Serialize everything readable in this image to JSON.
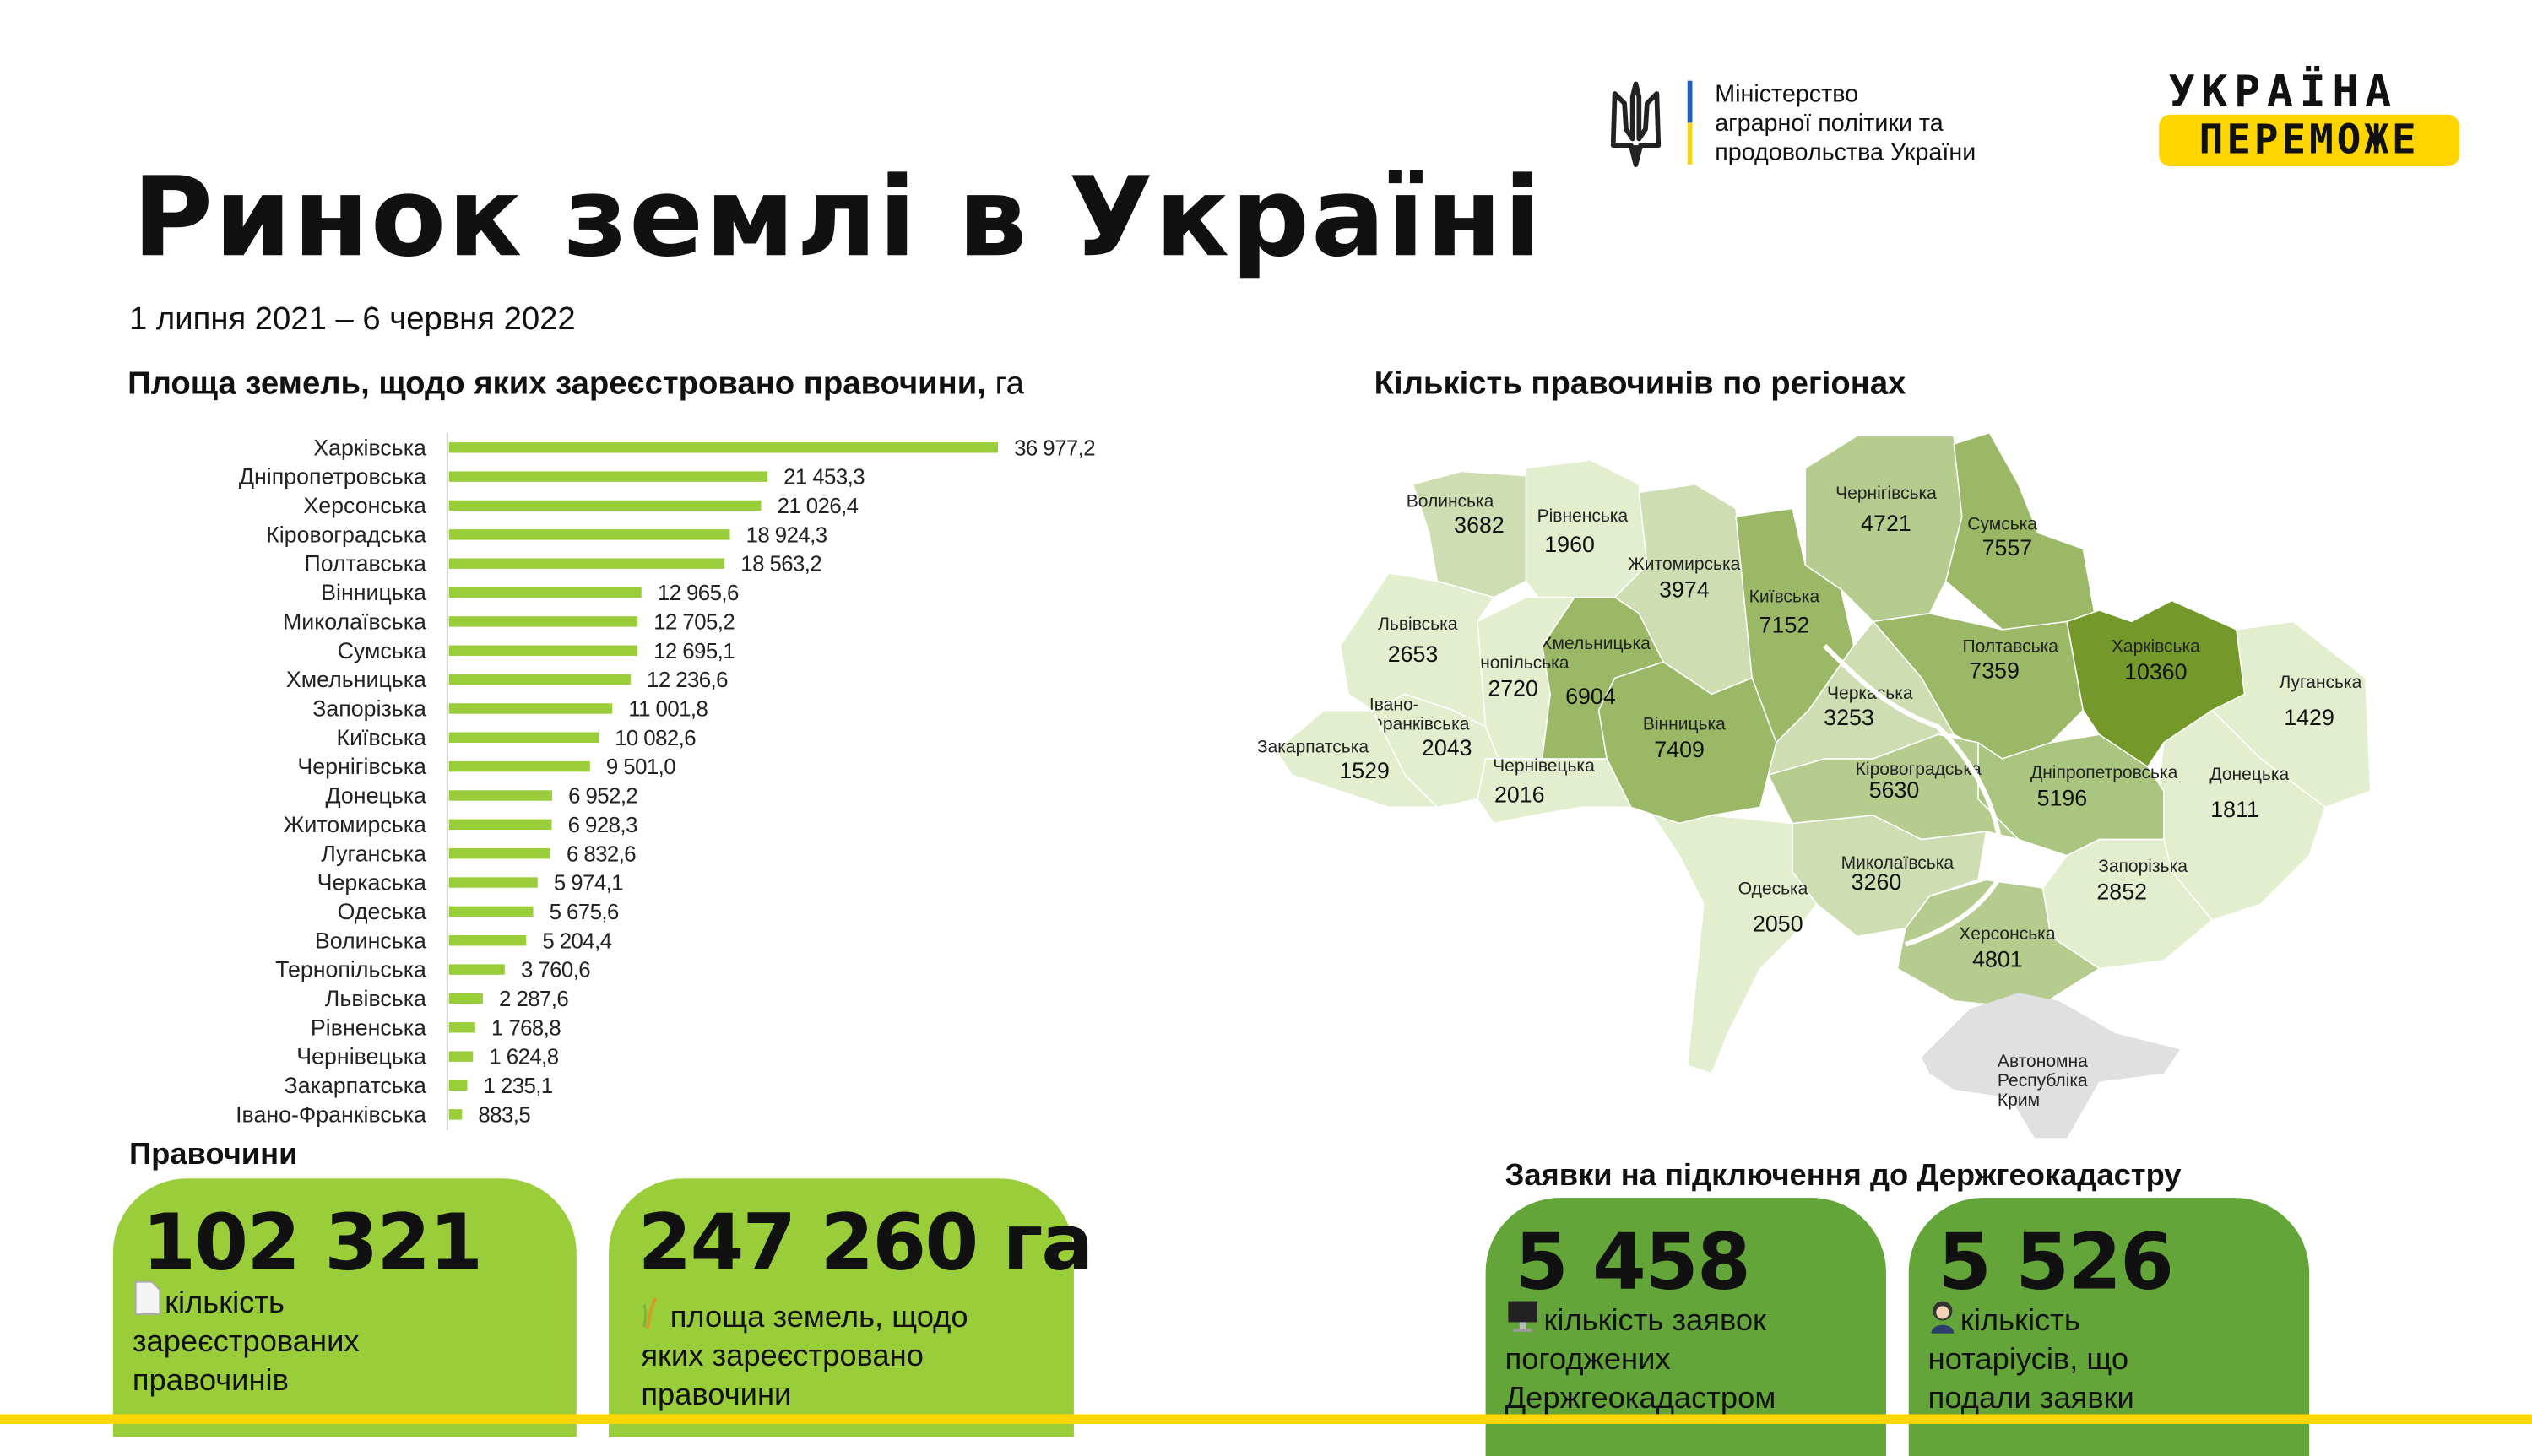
{
  "header": {
    "title": "Ринок землі в Україні",
    "period": "1 липня 2021 – 6 червня 2022",
    "ministry": [
      "Міністерство",
      "аграрної політики та",
      "продовольства України"
    ],
    "logo_line1": "УКРАЇНА",
    "logo_line2": "ПЕРЕМОЖЕ",
    "colors": {
      "yellow": "#ffd500",
      "blue": "#1a5fd0"
    }
  },
  "chart_data": {
    "type": "bar",
    "orientation": "horizontal",
    "title": "Площа земель, щодо яких зареєстровано правочини,",
    "unit": "га",
    "categories": [
      "Харківська",
      "Дніпропетровська",
      "Херсонська",
      "Кіровоградська",
      "Полтавська",
      "Вінницька",
      "Миколаївська",
      "Сумська",
      "Хмельницька",
      "Запорізька",
      "Київська",
      "Чернігівська",
      "Донецька",
      "Житомирська",
      "Луганська",
      "Черкаська",
      "Одеська",
      "Волинська",
      "Тернопільська",
      "Львівська",
      "Рівненська",
      "Чернівецька",
      "Закарпатська",
      "Івано-Франківська"
    ],
    "values": [
      36977.2,
      21453.3,
      21026.4,
      18924.3,
      18563.2,
      12965.6,
      12705.2,
      12695.1,
      12236.6,
      11001.8,
      10082.6,
      9501.0,
      6952.2,
      6928.3,
      6832.6,
      5974.1,
      5675.6,
      5204.4,
      3760.6,
      2287.6,
      1768.8,
      1624.8,
      1235.1,
      883.5
    ],
    "value_labels": [
      "36 977,2",
      "21 453,3",
      "21 026,4",
      "18 924,3",
      "18 563,2",
      "12 965,6",
      "12 705,2",
      "12 695,1",
      "12 236,6",
      "11 001,8",
      "10 082,6",
      "9 501,0",
      "6 952,2",
      "6 928,3",
      "6 832,6",
      "5 974,1",
      "5 675,6",
      "5 204,4",
      "3 760,6",
      "2 287,6",
      "1 768,8",
      "1 624,8",
      "1 235,1",
      "883,5"
    ],
    "bar_color": "#9acd3a",
    "xlim": [
      0,
      36977.2
    ],
    "grid": false
  },
  "map": {
    "title": "Кількість правочинів по регіонах",
    "regions": [
      {
        "name": "Волинська",
        "count": "3682"
      },
      {
        "name": "Рівненська",
        "count": "1960"
      },
      {
        "name": "Житомирська",
        "count": "3974"
      },
      {
        "name": "Київська",
        "count": "7152"
      },
      {
        "name": "Чернігівська",
        "count": "4721"
      },
      {
        "name": "Сумська",
        "count": "7557"
      },
      {
        "name": "Полтавська",
        "count": "7359"
      },
      {
        "name": "Харківська",
        "count": "10360"
      },
      {
        "name": "Луганська",
        "count": "1429"
      },
      {
        "name": "Донецька",
        "count": "1811"
      },
      {
        "name": "Дніпропетровська",
        "count": "5196"
      },
      {
        "name": "Запорізька",
        "count": "2852"
      },
      {
        "name": "Херсонська",
        "count": "4801"
      },
      {
        "name": "Миколаївська",
        "count": "3260"
      },
      {
        "name": "Одеська",
        "count": "2050"
      },
      {
        "name": "Кіровоградська",
        "count": "5630"
      },
      {
        "name": "Черкаська",
        "count": "3253"
      },
      {
        "name": "Вінницька",
        "count": "7409"
      },
      {
        "name": "Хмельницька",
        "count": "6904"
      },
      {
        "name": "Тернопільська",
        "count": "2720"
      },
      {
        "name": "Львівська",
        "count": "2653"
      },
      {
        "name": "Івано-Франківська",
        "name_lines": [
          "Івано-",
          "Франківська"
        ],
        "count": "2043"
      },
      {
        "name": "Закарпатська",
        "count": "1529"
      },
      {
        "name": "Чернівецька",
        "count": "2016"
      }
    ],
    "crimea": [
      "Автономна",
      "Республіка",
      "Крим"
    ],
    "colors": {
      "darkest": "#74992a",
      "dark": "#9bb866",
      "medium": "#b5cc8e",
      "light": "#cfdeb2",
      "lightest": "#e3eecf",
      "crimea": "#e0e0e0"
    }
  },
  "deals": {
    "heading": "Правочини",
    "cards": [
      {
        "value": "102 321",
        "icon": "document-icon",
        "desc": [
          "кількість",
          "зареєстрованих",
          "правочинів"
        ]
      },
      {
        "value": "247 260 га",
        "icon": "wheat-icon",
        "desc": [
          "площа земель, щодо",
          "яких зареєстровано",
          "правочини"
        ]
      }
    ],
    "color": "#9acd3a"
  },
  "applications": {
    "heading": "Заявки на підключення до Держгеокадастру",
    "cards": [
      {
        "value": "5 458",
        "icon": "computer-icon",
        "desc": [
          "кількість заявок",
          "погоджених",
          "Держгеокадастром"
        ]
      },
      {
        "value": "5 526",
        "icon": "notary-icon",
        "desc": [
          "кількість",
          "нотаріусів, що",
          "подали заявки"
        ]
      }
    ],
    "color": "#63a538"
  }
}
